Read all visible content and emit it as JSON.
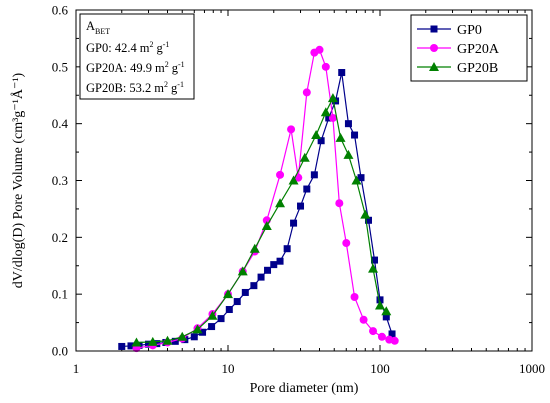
{
  "chart_data": {
    "type": "line",
    "xscale": "log",
    "xlabel": "Pore diameter (nm)",
    "ylabel": "dV/dlog(D) Pore Volume (cm³g⁻¹Å⁻¹)",
    "xlim": [
      1,
      1000
    ],
    "ylim": [
      0,
      0.6
    ],
    "xticks": [
      1,
      10,
      100,
      1000
    ],
    "xtick_labels": [
      "1",
      "10",
      "100",
      "1000"
    ],
    "yticks": [
      0.0,
      0.1,
      0.2,
      0.3,
      0.4,
      0.5,
      0.6
    ],
    "ytick_labels": [
      "0.0",
      "0.1",
      "0.2",
      "0.3",
      "0.4",
      "0.5",
      "0.6"
    ],
    "legend_position": "top-right",
    "annotation": {
      "title_main": "A",
      "title_sub": "BET",
      "lines": [
        {
          "name": "GP0: ",
          "value": "42.4",
          "unit_a": "m",
          "sup_a": "2",
          "unit_b": "g",
          "sup_b": "-1"
        },
        {
          "name": "GP20A: ",
          "value": "49.9",
          "unit_a": "m",
          "sup_a": "2",
          "unit_b": "g",
          "sup_b": "-1"
        },
        {
          "name": "GP20B: ",
          "value": "53.2",
          "unit_a": "m",
          "sup_a": "2",
          "unit_b": "g",
          "sup_b": "-1"
        }
      ]
    },
    "series": [
      {
        "name": "GP0",
        "color": "#00008B",
        "marker": "square",
        "x": [
          2.0,
          2.3,
          2.6,
          3.0,
          3.4,
          3.9,
          4.5,
          5.2,
          6.0,
          6.8,
          7.8,
          9.0,
          10.2,
          11.5,
          13.0,
          14.8,
          16.5,
          18.2,
          20.0,
          22.0,
          24.5,
          27.0,
          30.0,
          33.0,
          37.0,
          41.0,
          46.0,
          51.0,
          56.0,
          62.0,
          68.0,
          75.0,
          84.0,
          92.0,
          100.0,
          110.0,
          120.0
        ],
        "y": [
          0.008,
          0.009,
          0.01,
          0.012,
          0.013,
          0.015,
          0.017,
          0.02,
          0.025,
          0.033,
          0.043,
          0.057,
          0.073,
          0.087,
          0.103,
          0.115,
          0.13,
          0.142,
          0.152,
          0.158,
          0.18,
          0.225,
          0.255,
          0.285,
          0.31,
          0.37,
          0.41,
          0.44,
          0.49,
          0.4,
          0.38,
          0.305,
          0.23,
          0.16,
          0.09,
          0.06,
          0.03
        ]
      },
      {
        "name": "GP20A",
        "color": "#FF00FF",
        "marker": "circle",
        "x": [
          2.5,
          3.2,
          4.0,
          5.0,
          6.3,
          7.9,
          10.0,
          12.5,
          15.0,
          18.0,
          22.0,
          26.0,
          29.0,
          33.0,
          37.0,
          40.0,
          44.0,
          49.0,
          54.0,
          60.0,
          68.0,
          78.0,
          90.0,
          103.0,
          115.0,
          125.0
        ],
        "y": [
          0.005,
          0.01,
          0.015,
          0.022,
          0.04,
          0.065,
          0.1,
          0.14,
          0.175,
          0.23,
          0.31,
          0.39,
          0.305,
          0.455,
          0.525,
          0.53,
          0.5,
          0.41,
          0.26,
          0.19,
          0.095,
          0.055,
          0.035,
          0.025,
          0.02,
          0.018
        ]
      },
      {
        "name": "GP20B",
        "color": "#008000",
        "marker": "triangle",
        "x": [
          2.5,
          3.2,
          4.0,
          5.0,
          6.3,
          7.9,
          10.0,
          12.5,
          15.0,
          18.0,
          22.0,
          27.0,
          32.0,
          38.0,
          44.0,
          49.0,
          55.0,
          62.0,
          70.0,
          80.0,
          90.0,
          100.0,
          110.0
        ],
        "y": [
          0.015,
          0.016,
          0.018,
          0.025,
          0.038,
          0.062,
          0.1,
          0.14,
          0.18,
          0.22,
          0.26,
          0.3,
          0.34,
          0.38,
          0.42,
          0.445,
          0.375,
          0.345,
          0.3,
          0.24,
          0.145,
          0.08,
          0.07
        ]
      }
    ]
  }
}
